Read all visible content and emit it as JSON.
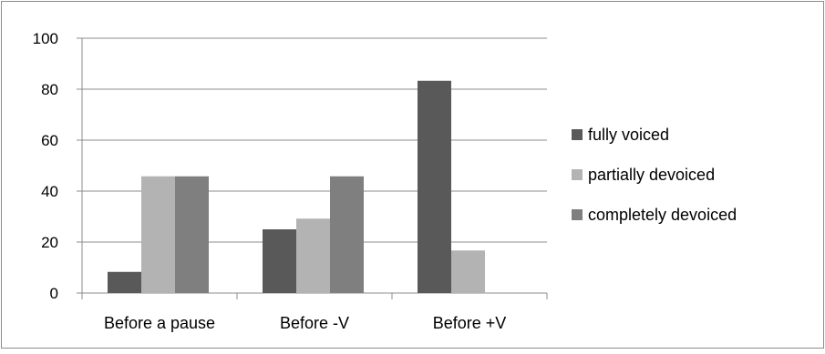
{
  "chart_data": {
    "type": "bar",
    "title": "",
    "xlabel": "",
    "ylabel": "",
    "categories": [
      "Before a pause",
      "Before -V",
      "Before +V"
    ],
    "ylim": [
      0,
      100
    ],
    "yticks": [
      "0",
      "20",
      "40",
      "60",
      "80",
      "100"
    ],
    "grid": true,
    "legend_position": "right",
    "series": [
      {
        "name": "fully voiced",
        "values": [
          8.3,
          25,
          83.3
        ],
        "color": "#595959"
      },
      {
        "name": "partially devoiced",
        "values": [
          45.8,
          29.2,
          16.7
        ],
        "color": "#b3b3b3"
      },
      {
        "name": "completely devoiced",
        "values": [
          45.8,
          45.8,
          0
        ],
        "color": "#7f7f7f"
      }
    ]
  }
}
